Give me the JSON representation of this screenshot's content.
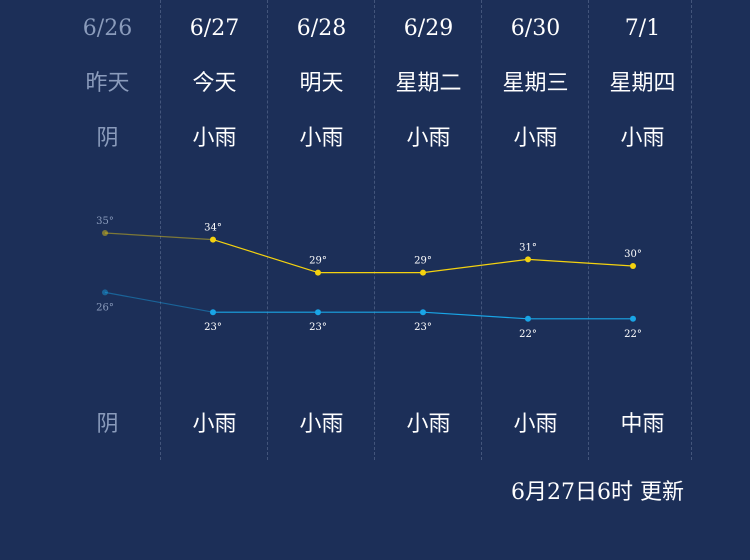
{
  "days": [
    {
      "date": "6/26",
      "name": "昨天",
      "weather_day": "阴",
      "weather_night": "阴",
      "high": 35,
      "low": 26,
      "high_label": "35°",
      "low_label": "26°"
    },
    {
      "date": "6/27",
      "name": "今天",
      "weather_day": "小雨",
      "weather_night": "小雨",
      "high": 34,
      "low": 23,
      "high_label": "34°",
      "low_label": "23°"
    },
    {
      "date": "6/28",
      "name": "明天",
      "weather_day": "小雨",
      "weather_night": "小雨",
      "high": 29,
      "low": 23,
      "high_label": "29°",
      "low_label": "23°"
    },
    {
      "date": "6/29",
      "name": "星期二",
      "weather_day": "小雨",
      "weather_night": "小雨",
      "high": 29,
      "low": 23,
      "high_label": "29°",
      "low_label": "23°"
    },
    {
      "date": "6/30",
      "name": "星期三",
      "weather_day": "小雨",
      "weather_night": "小雨",
      "high": 31,
      "low": 22,
      "high_label": "31°",
      "low_label": "22°"
    },
    {
      "date": "7/1",
      "name": "星期四",
      "weather_day": "小雨",
      "weather_night": "中雨",
      "high": 30,
      "low": 22,
      "high_label": "30°",
      "low_label": "22°"
    }
  ],
  "update_text": "6月27日6时 更新",
  "colors": {
    "background": "#1c2f58",
    "high_line": "#f4d20f",
    "low_line": "#19a5e6",
    "past_text": "#8a9bbb"
  }
}
